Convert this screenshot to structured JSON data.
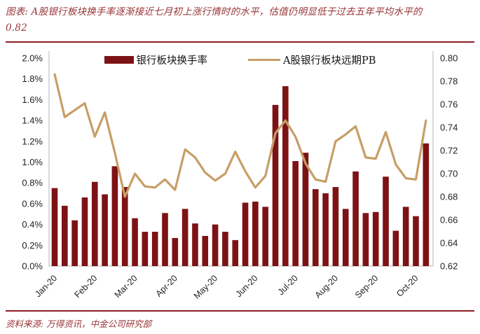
{
  "title": {
    "line1": "图表: A股银行板块换手率逐渐接近七月初上涨行情时的水平，估值仍明显低于过去五年平均水平的",
    "line2": "0.82"
  },
  "footer": {
    "source": "资料来源: 万得资讯，中金公司研究部"
  },
  "colors": {
    "bar": "#7d1215",
    "line": "#c79e66",
    "accent_rule": "#8e1d22",
    "title_text": "#993335",
    "axis_line": "#b3b3b3",
    "axis_text": "#1f1f1f"
  },
  "chart_data": {
    "type": "bar",
    "subtype": "combo-bar-line-dual-axis",
    "title": "",
    "xlabel": "",
    "ylabel_left": "",
    "ylabel_right": "",
    "grid": false,
    "legend_position": "top-center",
    "x_tick_labels": [
      "Jan-20",
      "Feb-20",
      "Mar-20",
      "Apr-20",
      "May-20",
      "Jun-20",
      "Jul-20",
      "Aug-20",
      "Sep-20",
      "Oct-20"
    ],
    "x_tick_every_n_points": 4,
    "left_axis": {
      "min": 0.0,
      "max": 2.0,
      "step": 0.2,
      "unit": "%",
      "tick_labels": [
        "2.0%",
        "1.8%",
        "1.6%",
        "1.4%",
        "1.2%",
        "1.0%",
        "0.8%",
        "0.6%",
        "0.4%",
        "0.2%",
        "0.0%"
      ]
    },
    "right_axis": {
      "min": 0.62,
      "max": 0.8,
      "step": 0.02,
      "tick_labels": [
        "0.80",
        "0.78",
        "0.76",
        "0.74",
        "0.72",
        "0.70",
        "0.68",
        "0.66",
        "0.64",
        "0.62"
      ]
    },
    "series": [
      {
        "name": "银行板块换手率",
        "type": "bar",
        "axis": "left",
        "unit": "%",
        "color": "#7d1215",
        "values": [
          0.75,
          0.58,
          0.44,
          0.66,
          0.81,
          0.69,
          0.96,
          0.76,
          0.46,
          0.33,
          0.33,
          0.51,
          0.27,
          0.55,
          0.41,
          0.29,
          0.4,
          0.33,
          0.25,
          0.61,
          0.62,
          0.57,
          1.55,
          1.73,
          1.01,
          1.09,
          0.74,
          0.7,
          0.76,
          0.55,
          0.91,
          0.51,
          0.52,
          0.86,
          0.34,
          0.57,
          0.48,
          1.18
        ]
      },
      {
        "name": "A股银行板块远期PB",
        "type": "line",
        "axis": "right",
        "color": "#c79e66",
        "values": [
          0.786,
          0.749,
          0.755,
          0.761,
          0.732,
          0.753,
          0.718,
          0.68,
          0.7,
          0.689,
          0.688,
          0.695,
          0.686,
          0.721,
          0.714,
          0.701,
          0.694,
          0.7,
          0.719,
          0.702,
          0.688,
          0.698,
          0.735,
          0.746,
          0.732,
          0.709,
          0.695,
          0.693,
          0.728,
          0.734,
          0.741,
          0.714,
          0.713,
          0.736,
          0.708,
          0.696,
          0.695,
          0.746
        ]
      }
    ]
  }
}
